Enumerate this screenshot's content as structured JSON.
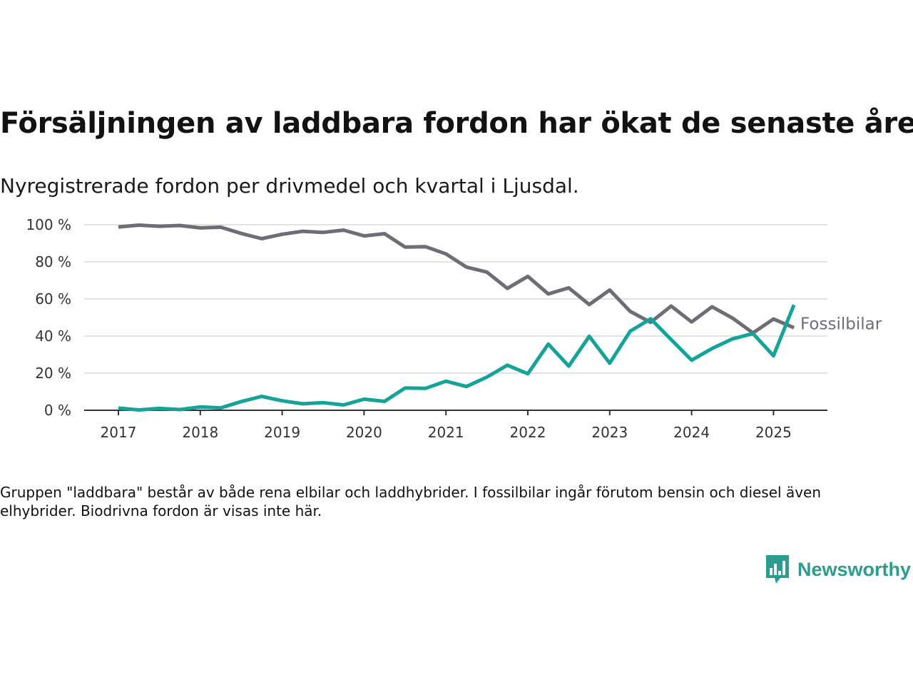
{
  "title": "Försäljningen av laddbara fordon har ökat de senaste åren",
  "subtitle": "Nyregistrerade fordon per drivmedel och kvartal i Ljusdal.",
  "note": "Gruppen \"laddbara\" består av både rena elbilar och laddhybrider. I fossilbilar ingår förutom bensin och diesel även elhybrider. Biodrivna fordon är visas inte här.",
  "brand": {
    "name": "Newsworthy",
    "icon": "newsworthy-chart-bubble-icon",
    "color": "#2a9d8f"
  },
  "chart_data": {
    "type": "line",
    "title": "",
    "xlabel": "",
    "ylabel": "",
    "ylim": [
      0,
      100
    ],
    "y_ticks": [
      {
        "value": 0,
        "label": "0 %"
      },
      {
        "value": 20,
        "label": "20 %"
      },
      {
        "value": 40,
        "label": "40 %"
      },
      {
        "value": 60,
        "label": "60 %"
      },
      {
        "value": 80,
        "label": "80 %"
      },
      {
        "value": 100,
        "label": "100 %"
      }
    ],
    "x_ticks": [
      "2017",
      "2018",
      "2019",
      "2020",
      "2021",
      "2022",
      "2023",
      "2024",
      "2025"
    ],
    "x_start_year": 2017,
    "grid": true,
    "x": [
      "2017 K1",
      "2017 K2",
      "2017 K3",
      "2017 K4",
      "2018 K1",
      "2018 K2",
      "2018 K3",
      "2018 K4",
      "2019 K1",
      "2019 K2",
      "2019 K3",
      "2019 K4",
      "2020 K1",
      "2020 K2",
      "2020 K3",
      "2020 K4",
      "2021 K1",
      "2021 K2",
      "2021 K3",
      "2021 K4",
      "2022 K1",
      "2022 K2",
      "2022 K3",
      "2022 K4",
      "2023 K1",
      "2023 K2",
      "2023 K3",
      "2023 K4",
      "2024 K1",
      "2024 K2",
      "2024 K3",
      "2024 K4",
      "2025 K1",
      "2025 K2"
    ],
    "series": [
      {
        "name": "Fossilbilar",
        "color": "#6e6d75",
        "values": [
          98.8,
          99.8,
          99.2,
          99.6,
          98.3,
          98.7,
          95.3,
          92.5,
          94.9,
          96.5,
          95.9,
          97.1,
          94.0,
          95.2,
          88.0,
          88.2,
          84.3,
          77.2,
          74.5,
          65.7,
          72.2,
          62.7,
          66.0,
          57.0,
          64.8,
          53.3,
          47.4,
          56.2,
          47.6,
          55.8,
          49.7,
          41.7,
          49.2,
          44.5
        ]
      },
      {
        "name": "",
        "color": "#13a399",
        "values": [
          1.2,
          0.2,
          1.0,
          0.4,
          1.8,
          1.3,
          4.7,
          7.5,
          5.1,
          3.5,
          4.1,
          2.9,
          6.0,
          4.8,
          12.0,
          11.8,
          15.7,
          12.8,
          17.9,
          24.3,
          19.7,
          35.7,
          23.8,
          39.9,
          25.4,
          42.6,
          49.3,
          38.1,
          27.0,
          33.3,
          38.5,
          41.4,
          29.4,
          56.8
        ]
      }
    ]
  }
}
